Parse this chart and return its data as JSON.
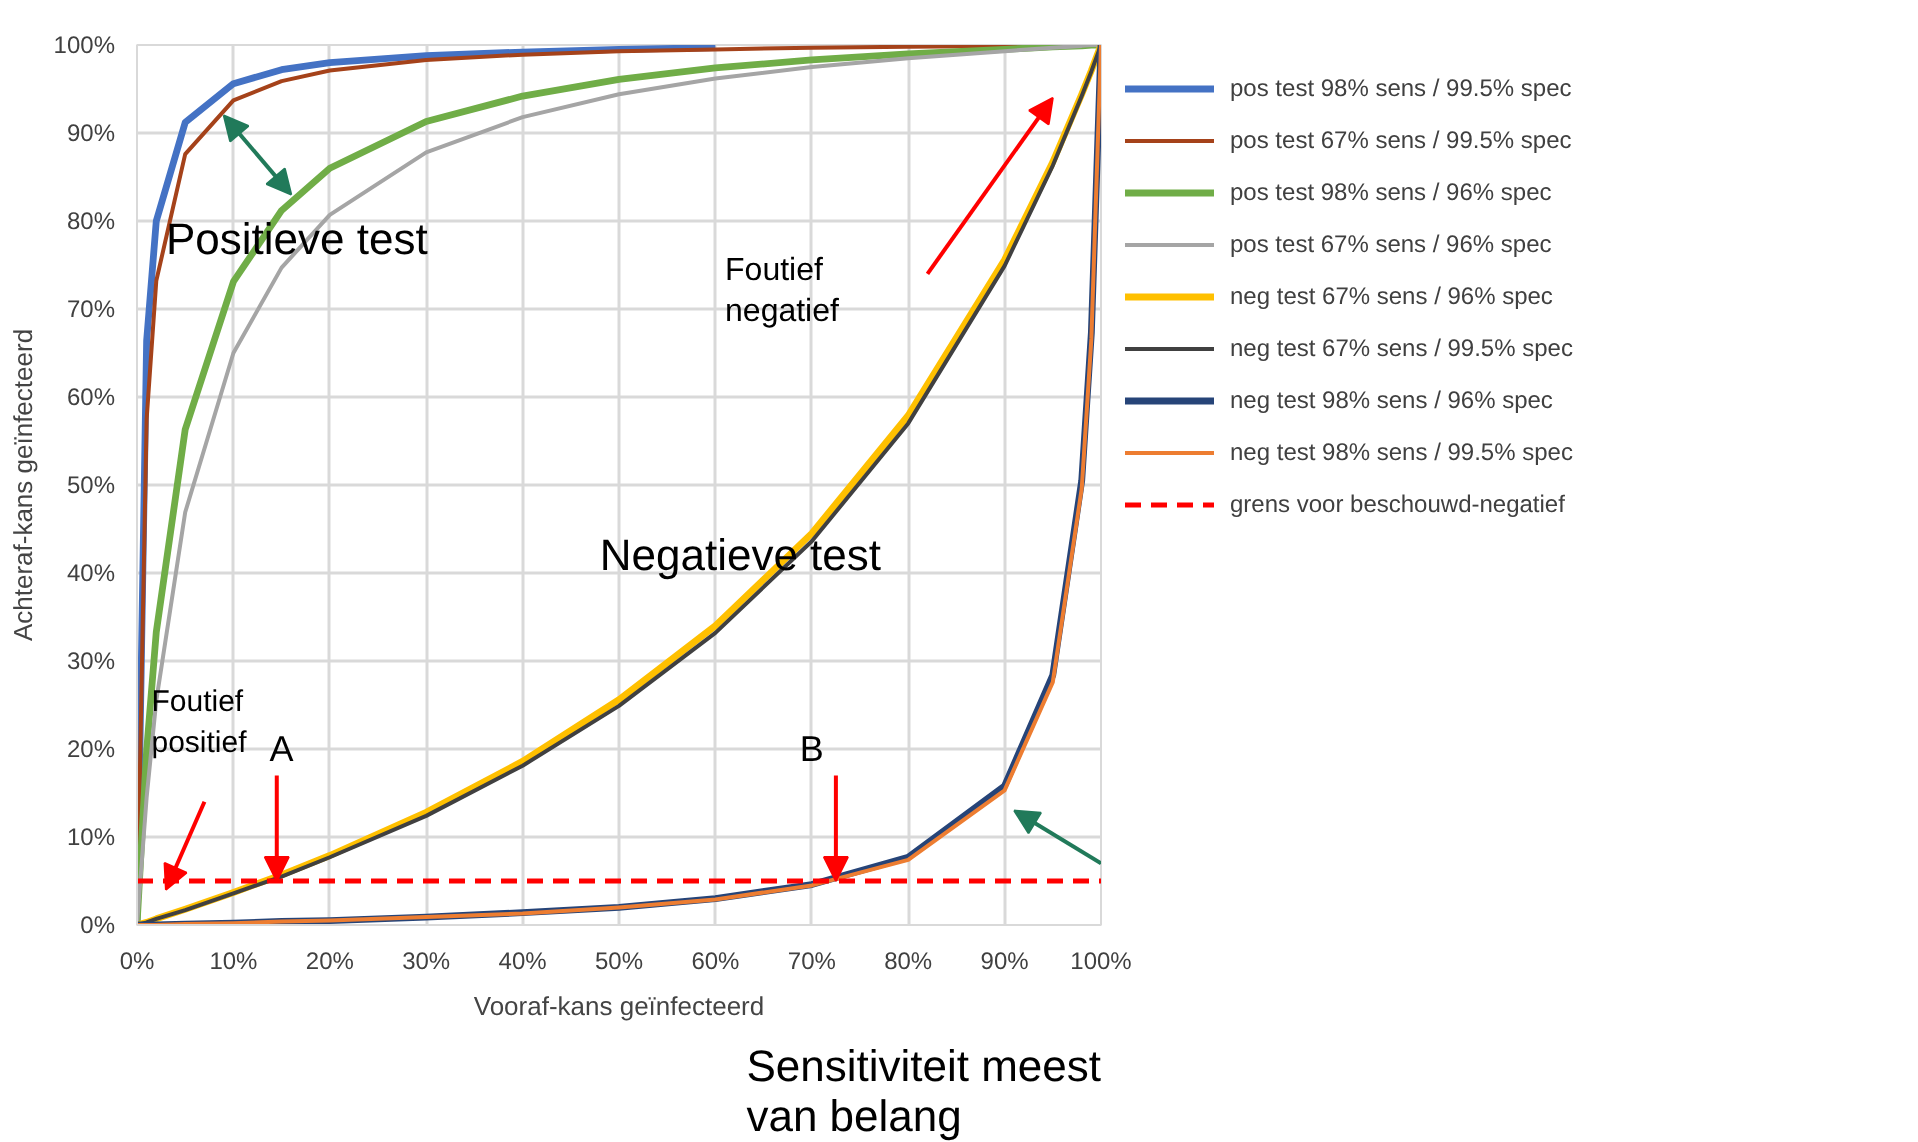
{
  "chart_data": {
    "type": "line",
    "xlabel": "Vooraf-kans geïnfecteerd",
    "ylabel": "Achteraf-kans geïnfecteerd",
    "x": [
      0,
      1,
      2,
      5,
      10,
      15,
      20,
      30,
      40,
      50,
      60,
      70,
      80,
      90,
      95,
      98,
      99,
      100
    ],
    "series": [
      {
        "name": "pos test 98% sens / 99.5% spec",
        "color": "#4472c4",
        "values": [
          0,
          66.4,
          80.0,
          91.2,
          95.6,
          97.2,
          98.0,
          98.8,
          99.2,
          99.5,
          99.7,
          null,
          null,
          null,
          null,
          null,
          null,
          null
        ]
      },
      {
        "name": "pos test 67% sens / 99.5% spec",
        "color": "#a5421a",
        "values": [
          0,
          57.5,
          73.2,
          87.6,
          93.7,
          95.9,
          97.1,
          98.3,
          98.9,
          99.3,
          99.5,
          99.7,
          99.8,
          99.9,
          100,
          100,
          100,
          100
        ]
      },
      {
        "name": "pos test 98% sens / 96% spec",
        "color": "#70ad47",
        "values": [
          0,
          19.8,
          33.3,
          56.3,
          73.1,
          81.2,
          86.0,
          91.3,
          94.2,
          96.1,
          97.4,
          98.3,
          99.0,
          99.5,
          99.8,
          99.9,
          100,
          100
        ]
      },
      {
        "name": "pos test 67% sens / 96% spec",
        "color": "#a5a5a5",
        "values": [
          0,
          14.5,
          25.5,
          46.9,
          65.0,
          74.7,
          80.7,
          87.8,
          91.8,
          94.4,
          96.2,
          97.5,
          98.5,
          99.3,
          99.7,
          99.9,
          100,
          100
        ]
      },
      {
        "name": "neg test 67% sens / 96% spec",
        "color": "#ffc000",
        "values": [
          0,
          0.3,
          0.7,
          1.8,
          3.7,
          5.7,
          7.9,
          12.8,
          18.6,
          25.6,
          34.0,
          44.5,
          57.9,
          75.6,
          86.7,
          94.4,
          97.1,
          100
        ]
      },
      {
        "name": "neg test 67% sens / 99.5% spec",
        "color": "#404040",
        "values": [
          0,
          0.3,
          0.7,
          1.7,
          3.6,
          5.5,
          7.7,
          12.4,
          18.1,
          24.9,
          33.2,
          43.6,
          57.0,
          74.9,
          86.3,
          94.2,
          97.0,
          100
        ]
      },
      {
        "name": "neg test 98% sens / 96% spec",
        "color": "#264478",
        "values": [
          0,
          0,
          0,
          0.1,
          0.2,
          0.4,
          0.5,
          0.9,
          1.4,
          2.0,
          3.0,
          4.6,
          7.7,
          15.8,
          28.4,
          50.5,
          67.3,
          100
        ]
      },
      {
        "name": "neg test 98% sens / 99.5% spec",
        "color": "#ed7d31",
        "values": [
          0,
          0,
          0,
          0.1,
          0.2,
          0.4,
          0.5,
          0.9,
          1.3,
          2.0,
          2.9,
          4.5,
          7.4,
          15.3,
          27.6,
          49.6,
          66.6,
          100
        ]
      }
    ],
    "ref_lines": [
      {
        "axis": "y",
        "value": 5,
        "label": "grens voor beschouwd-negatief",
        "color": "#ff0000",
        "line_style": "dashed"
      }
    ],
    "annotations": [
      {
        "text": "Positieve test",
        "x": 16,
        "y": 83
      },
      "Foutief\npositief",
      "Foutief\nnegatief",
      {
        "text": "Negatieve test",
        "x": 66,
        "y": 40
      },
      {
        "text": "A",
        "x": 14.5,
        "y": 5
      },
      {
        "text": "B",
        "x": 72.5,
        "y": 5
      },
      "Sensitiviteit meest\nvan belang"
    ],
    "xlim": [
      0,
      100
    ],
    "ylim": [
      0,
      100
    ],
    "xticks": [
      {
        "value": 0,
        "label": "0%"
      },
      {
        "value": 10,
        "label": "10%"
      },
      {
        "value": 20,
        "label": "20%"
      },
      {
        "value": 30,
        "label": "30%"
      },
      {
        "value": 40,
        "label": "40%"
      },
      {
        "value": 50,
        "label": "50%"
      },
      {
        "value": 60,
        "label": "60%"
      },
      {
        "value": 70,
        "label": "70%"
      },
      {
        "value": 80,
        "label": "80%"
      },
      {
        "value": 90,
        "label": "90%"
      },
      {
        "value": 100,
        "label": "100%"
      }
    ],
    "yticks": [
      {
        "value": 0,
        "label": "0%"
      },
      {
        "value": 10,
        "label": "10%"
      },
      {
        "value": 20,
        "label": "20%"
      },
      {
        "value": 30,
        "label": "30%"
      },
      {
        "value": 40,
        "label": "40%"
      },
      {
        "value": 50,
        "label": "50%"
      },
      {
        "value": 60,
        "label": "60%"
      },
      {
        "value": 70,
        "label": "70%"
      },
      {
        "value": 80,
        "label": "80%"
      },
      {
        "value": 90,
        "label": "90%"
      },
      {
        "value": 100,
        "label": "100%"
      }
    ],
    "grid": true,
    "legend": "right",
    "marker": "none",
    "line_style": "solid"
  }
}
